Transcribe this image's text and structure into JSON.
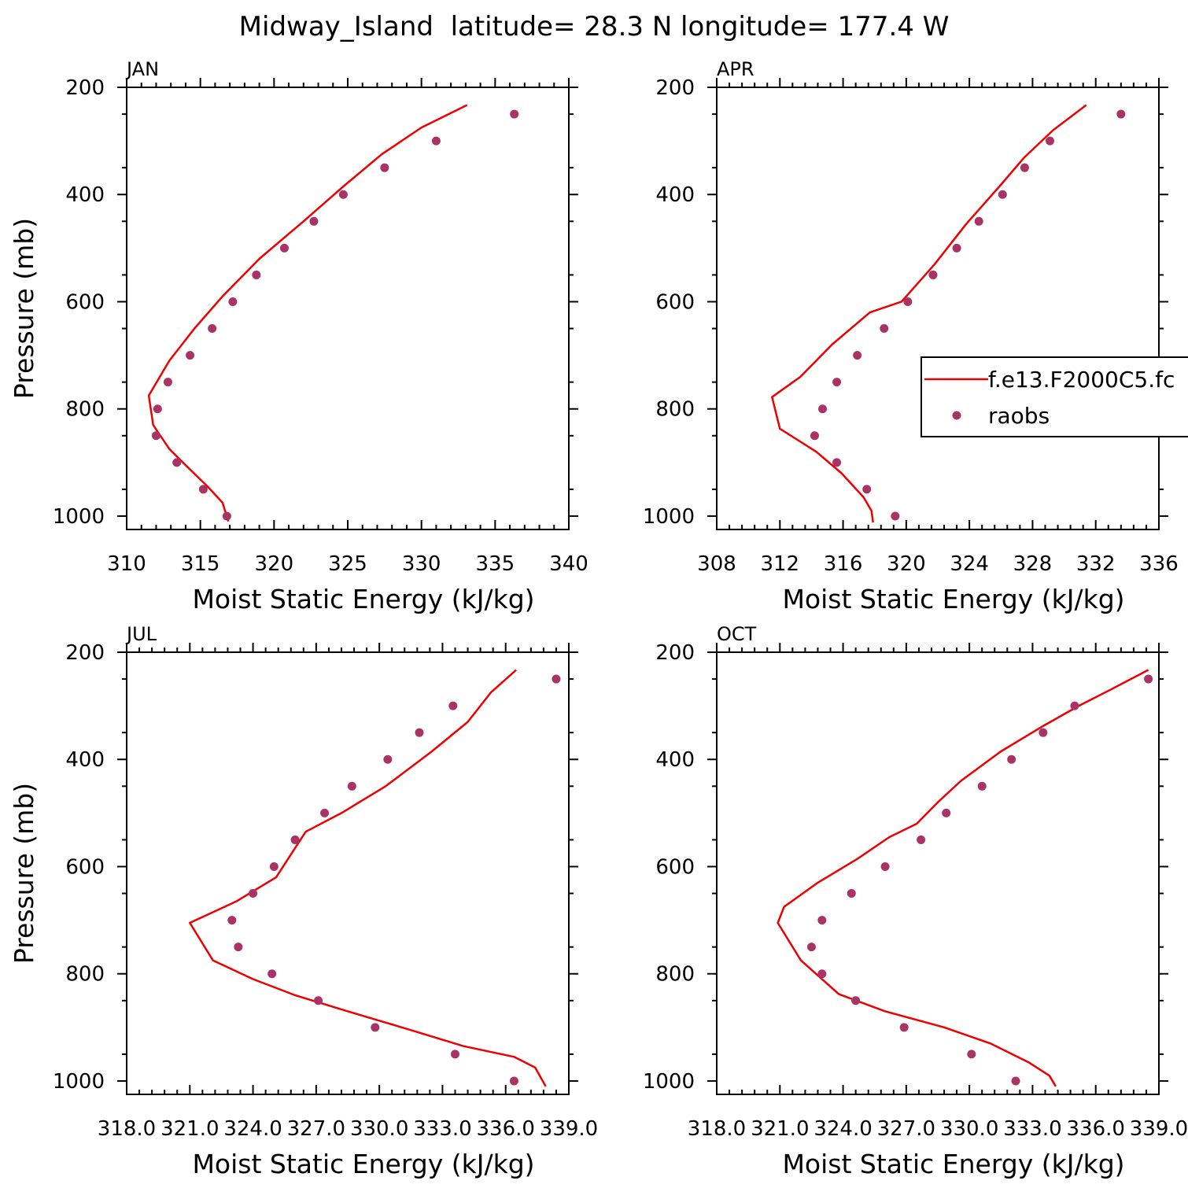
{
  "title": "Midway_Island  latitude= 28.3 N longitude= 177.4 W",
  "colors": {
    "model": "#ee0000",
    "obs": "#aa3366",
    "axis": "#000000"
  },
  "legend": {
    "model_label": "f.e13.F2000C5.fc",
    "obs_label": "raobs",
    "placement": "right-middle"
  },
  "chart_data": [
    {
      "type": "line",
      "panel_label": "JAN",
      "xlabel": "Moist Static Energy (kJ/kg)",
      "ylabel": "Pressure (mb)",
      "xlim": [
        310,
        340
      ],
      "ylim": [
        200,
        1025
      ],
      "y_inverted": true,
      "xticks": [
        "310",
        "315",
        "320",
        "325",
        "330",
        "335",
        "340"
      ],
      "yticks": [
        "200",
        "400",
        "600",
        "800",
        "1000"
      ],
      "series": [
        {
          "name": "f.e13.F2000C5.fc",
          "kind": "line",
          "x": [
            333.1,
            330.0,
            327.3,
            324.7,
            322.0,
            319.0,
            316.5,
            314.6,
            312.9,
            311.5,
            311.8,
            312.9,
            314.0,
            315.5,
            316.5,
            316.9
          ],
          "y": [
            233,
            275,
            325,
            385,
            450,
            520,
            590,
            650,
            710,
            775,
            830,
            875,
            905,
            945,
            975,
            1010
          ]
        },
        {
          "name": "raobs",
          "kind": "scatter",
          "x": [
            336.3,
            331.0,
            327.5,
            324.7,
            322.7,
            320.7,
            318.8,
            317.2,
            315.8,
            314.3,
            312.8,
            312.1,
            312.0,
            313.4,
            315.2,
            316.8
          ],
          "y": [
            250,
            300,
            350,
            400,
            450,
            500,
            550,
            600,
            650,
            700,
            750,
            800,
            850,
            900,
            950,
            1000
          ]
        }
      ]
    },
    {
      "type": "line",
      "panel_label": "APR",
      "xlabel": "Moist Static Energy (kJ/kg)",
      "ylabel": "",
      "xlim": [
        308,
        336
      ],
      "ylim": [
        200,
        1025
      ],
      "y_inverted": true,
      "xticks": [
        "308",
        "312",
        "316",
        "320",
        "324",
        "328",
        "332",
        "336"
      ],
      "yticks": [
        "200",
        "400",
        "600",
        "800",
        "1000"
      ],
      "series": [
        {
          "name": "f.e13.F2000C5.fc",
          "kind": "line",
          "x": [
            331.4,
            329.3,
            327.5,
            325.9,
            323.8,
            321.8,
            319.7,
            317.7,
            315.3,
            313.3,
            311.5,
            312.0,
            314.3,
            315.9,
            317.3,
            317.8,
            317.9
          ],
          "y": [
            233,
            280,
            330,
            385,
            455,
            530,
            600,
            620,
            680,
            740,
            778,
            837,
            880,
            920,
            965,
            990,
            1012
          ]
        },
        {
          "name": "raobs",
          "kind": "scatter",
          "x": [
            333.6,
            329.1,
            327.5,
            326.1,
            324.6,
            323.2,
            321.7,
            320.1,
            318.6,
            316.9,
            315.6,
            314.7,
            314.2,
            315.6,
            317.5,
            319.3
          ],
          "y": [
            250,
            300,
            350,
            400,
            450,
            500,
            550,
            600,
            650,
            700,
            750,
            800,
            850,
            900,
            950,
            1000
          ]
        }
      ]
    },
    {
      "type": "line",
      "panel_label": "JUL",
      "xlabel": "Moist Static Energy (kJ/kg)",
      "ylabel": "Pressure (mb)",
      "xlim": [
        318.0,
        339.0
      ],
      "ylim": [
        200,
        1025
      ],
      "y_inverted": true,
      "xticks": [
        "318.0",
        "321.0",
        "324.0",
        "327.0",
        "330.0",
        "333.0",
        "336.0",
        "339.0"
      ],
      "yticks": [
        "200",
        "400",
        "600",
        "800",
        "1000"
      ],
      "series": [
        {
          "name": "f.e13.F2000C5.fc",
          "kind": "line",
          "x": [
            336.5,
            335.3,
            334.2,
            332.5,
            330.3,
            328.2,
            326.5,
            325.1,
            323.2,
            321.0,
            322.1,
            324.0,
            326.0,
            328.5,
            331.5,
            334.0,
            336.4,
            337.4,
            337.9
          ],
          "y": [
            233,
            275,
            330,
            385,
            450,
            500,
            535,
            620,
            665,
            705,
            775,
            810,
            840,
            870,
            905,
            935,
            955,
            975,
            1010
          ]
        },
        {
          "name": "raobs",
          "kind": "scatter",
          "x": [
            338.4,
            333.5,
            331.9,
            330.4,
            328.7,
            327.4,
            326.0,
            325.0,
            324.0,
            323.0,
            323.3,
            324.9,
            327.1,
            329.8,
            333.6,
            336.4
          ],
          "y": [
            250,
            300,
            350,
            400,
            450,
            500,
            550,
            600,
            650,
            700,
            750,
            800,
            850,
            900,
            950,
            1000
          ]
        }
      ]
    },
    {
      "type": "line",
      "panel_label": "OCT",
      "xlabel": "Moist Static Energy (kJ/kg)",
      "ylabel": "",
      "xlim": [
        318.0,
        339.0
      ],
      "ylim": [
        200,
        1025
      ],
      "y_inverted": true,
      "xticks": [
        "318.0",
        "321.0",
        "324.0",
        "327.0",
        "330.0",
        "333.0",
        "336.0",
        "339.0"
      ],
      "yticks": [
        "200",
        "400",
        "600",
        "800",
        "1000"
      ],
      "series": [
        {
          "name": "f.e13.F2000C5.fc",
          "kind": "line",
          "x": [
            338.5,
            336.7,
            335.2,
            333.4,
            331.5,
            329.6,
            328.5,
            327.5,
            326.2,
            324.7,
            322.8,
            321.2,
            320.9,
            322.0,
            323.8,
            326.0,
            328.8,
            331.0,
            332.8,
            333.8,
            334.1
          ],
          "y": [
            233,
            270,
            300,
            340,
            385,
            440,
            480,
            520,
            545,
            585,
            630,
            675,
            705,
            775,
            838,
            870,
            900,
            930,
            965,
            990,
            1010
          ]
        },
        {
          "name": "raobs",
          "kind": "scatter",
          "x": [
            338.5,
            335.0,
            333.5,
            332.0,
            330.6,
            328.9,
            327.7,
            326.0,
            324.4,
            323.0,
            322.5,
            323.0,
            324.6,
            326.9,
            330.1,
            332.2
          ],
          "y": [
            250,
            300,
            350,
            400,
            450,
            500,
            550,
            600,
            650,
            700,
            750,
            800,
            850,
            900,
            950,
            1000
          ]
        }
      ]
    }
  ]
}
